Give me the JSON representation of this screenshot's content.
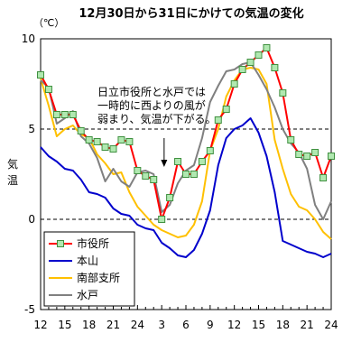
{
  "chart_data": {
    "type": "line",
    "title": "12月30日から31日にかけての気温の変化",
    "unit": "（℃）",
    "ylabel": "気温",
    "ylim": [
      -5,
      10
    ],
    "yticks": [
      "10",
      "5",
      "0",
      "-5"
    ],
    "xlim": [
      0,
      36
    ],
    "xticks": [
      "12",
      "15",
      "18",
      "21",
      "24",
      "3",
      "6",
      "9",
      "12",
      "15",
      "18",
      "21",
      "24"
    ],
    "dashed_lines_at": [
      5,
      0
    ],
    "annotation": {
      "lines": [
        "日立市役所と水戸では",
        "一時的に西よりの風が",
        "弱まり、気温が下がる。"
      ],
      "arrow_target": {
        "x": 15.3,
        "y": 2.9
      }
    },
    "legend_position": "bottom-left",
    "x": [
      0,
      1,
      2,
      3,
      4,
      5,
      6,
      7,
      8,
      9,
      10,
      11,
      12,
      13,
      14,
      15,
      16,
      17,
      18,
      19,
      20,
      21,
      22,
      23,
      24,
      25,
      26,
      27,
      28,
      29,
      30,
      31,
      32,
      33,
      34,
      35,
      36
    ],
    "series": [
      {
        "name": "市役所",
        "color": "#ff0000",
        "marker": "square",
        "marker_fill": "#b0e8b0",
        "marker_stroke": "#409040",
        "values": [
          8.0,
          7.2,
          5.8,
          5.8,
          5.8,
          4.9,
          4.4,
          4.3,
          4.0,
          3.9,
          4.4,
          4.3,
          2.7,
          2.4,
          2.2,
          0.0,
          1.2,
          3.2,
          2.5,
          2.5,
          3.2,
          3.8,
          5.5,
          6.1,
          7.5,
          8.3,
          8.7,
          9.1,
          9.5,
          8.4,
          7.0,
          4.4,
          3.6,
          3.5,
          3.7,
          2.3,
          3.5
        ]
      },
      {
        "name": "本山",
        "color": "#0000cc",
        "marker": "none",
        "values": [
          4.0,
          3.5,
          3.2,
          2.8,
          2.7,
          2.2,
          1.5,
          1.4,
          1.2,
          0.6,
          0.3,
          0.2,
          -0.3,
          -0.5,
          -0.6,
          -1.3,
          -1.6,
          -2.0,
          -2.1,
          -1.7,
          -0.8,
          0.5,
          3.0,
          4.5,
          5.0,
          5.2,
          5.6,
          4.8,
          3.5,
          1.5,
          -1.2,
          -1.4,
          -1.6,
          -1.8,
          -1.9,
          -2.1,
          -1.9
        ]
      },
      {
        "name": "南部支所",
        "color": "#ffc000",
        "marker": "none",
        "values": [
          7.8,
          6.3,
          4.6,
          5.0,
          5.2,
          4.7,
          4.5,
          3.6,
          3.1,
          2.5,
          2.6,
          1.5,
          0.7,
          0.2,
          -0.3,
          -0.6,
          -0.8,
          -1.0,
          -0.9,
          -0.3,
          1.0,
          3.8,
          5.0,
          6.8,
          7.7,
          8.3,
          8.4,
          8.3,
          7.5,
          4.4,
          2.8,
          1.4,
          0.7,
          0.5,
          0.0,
          -0.7,
          -1.1
        ]
      },
      {
        "name": "水戸",
        "color": "#808080",
        "marker": "none",
        "values": [
          7.7,
          7.3,
          5.3,
          5.6,
          6.0,
          4.6,
          4.2,
          3.4,
          2.1,
          2.8,
          2.1,
          1.8,
          2.6,
          2.7,
          2.5,
          0.4,
          0.8,
          2.0,
          2.7,
          3.0,
          4.5,
          6.5,
          7.4,
          8.2,
          8.3,
          8.6,
          8.7,
          8.0,
          7.2,
          6.2,
          5.0,
          4.2,
          3.7,
          2.8,
          0.8,
          0.0,
          1.0
        ]
      }
    ]
  }
}
